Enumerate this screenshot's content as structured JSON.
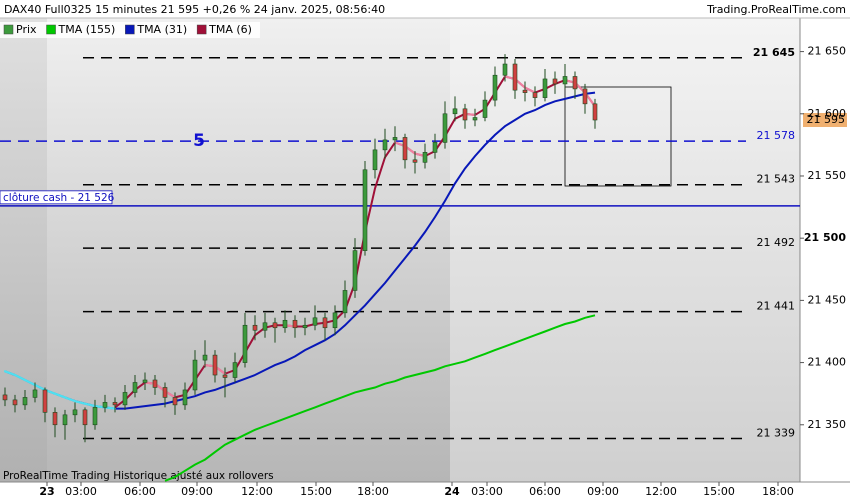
{
  "chart_data": {
    "type": "candlestick",
    "title": "DAX40 Full0325 15 minutes 21 595 +0,26 % 24 janv. 2025, 08:56:40",
    "source": "Trading.ProRealTime.com",
    "footer": "ProRealTime Trading  Historique ajusté aux rollovers",
    "annotation": "5",
    "price_name": "Prix",
    "price_color": "#3c9a3c",
    "ylim": [
      21304,
      21677
    ],
    "yticks": [
      {
        "value": 21350,
        "label": "21 350"
      },
      {
        "value": 21400,
        "label": "21 400"
      },
      {
        "value": 21450,
        "label": "21 450"
      },
      {
        "value": 21500,
        "label": "21 500"
      },
      {
        "value": 21550,
        "label": "21 550"
      },
      {
        "value": 21600,
        "label": "21 600"
      },
      {
        "value": 21650,
        "label": "21 650"
      }
    ],
    "x_labels": [
      "23",
      "03:00",
      "06:00",
      "09:00",
      "12:00",
      "15:00",
      "18:00",
      "24",
      "03:00",
      "06:00",
      "09:00",
      "12:00",
      "15:00",
      "18:00"
    ],
    "last_price": {
      "value": 21595,
      "label": "21 595"
    },
    "levels": [
      {
        "value": 21645,
        "label": "21 645",
        "color": "#000000"
      },
      {
        "value": 21578,
        "label": "21 578",
        "color": "#1010d0"
      },
      {
        "value": 21543,
        "label": "21 543",
        "color": "#000000"
      },
      {
        "value": 21492,
        "label": "21 492",
        "color": "#000000"
      },
      {
        "value": 21441,
        "label": "21 441",
        "color": "#000000"
      },
      {
        "value": 21339,
        "label": "21 339",
        "color": "#000000"
      }
    ],
    "cash_close": {
      "value": 21526,
      "label": "clôture cash -  21 526",
      "color": "#1010c0"
    },
    "ohlc": [
      [
        21374,
        21380,
        21365,
        21370
      ],
      [
        21370,
        21374,
        21360,
        21366
      ],
      [
        21366,
        21378,
        21362,
        21372
      ],
      [
        21372,
        21384,
        21368,
        21378
      ],
      [
        21378,
        21380,
        21352,
        21360
      ],
      [
        21360,
        21364,
        21340,
        21350
      ],
      [
        21350,
        21362,
        21338,
        21358
      ],
      [
        21358,
        21368,
        21352,
        21362
      ],
      [
        21362,
        21364,
        21336,
        21350
      ],
      [
        21350,
        21370,
        21346,
        21364
      ],
      [
        21364,
        21374,
        21360,
        21368
      ],
      [
        21368,
        21372,
        21360,
        21366
      ],
      [
        21366,
        21382,
        21362,
        21376
      ],
      [
        21376,
        21390,
        21372,
        21384
      ],
      [
        21384,
        21392,
        21378,
        21386
      ],
      [
        21386,
        21390,
        21374,
        21380
      ],
      [
        21380,
        21384,
        21364,
        21372
      ],
      [
        21372,
        21376,
        21358,
        21366
      ],
      [
        21366,
        21384,
        21362,
        21378
      ],
      [
        21378,
        21410,
        21374,
        21402
      ],
      [
        21402,
        21418,
        21396,
        21406
      ],
      [
        21406,
        21410,
        21384,
        21390
      ],
      [
        21390,
        21396,
        21372,
        21388
      ],
      [
        21388,
        21408,
        21384,
        21400
      ],
      [
        21400,
        21440,
        21396,
        21430
      ],
      [
        21430,
        21438,
        21418,
        21426
      ],
      [
        21426,
        21440,
        21420,
        21432
      ],
      [
        21432,
        21436,
        21416,
        21428
      ],
      [
        21428,
        21442,
        21424,
        21434
      ],
      [
        21434,
        21438,
        21420,
        21428
      ],
      [
        21428,
        21436,
        21422,
        21430
      ],
      [
        21430,
        21446,
        21426,
        21436
      ],
      [
        21436,
        21440,
        21418,
        21428
      ],
      [
        21428,
        21446,
        21422,
        21440
      ],
      [
        21440,
        21466,
        21436,
        21458
      ],
      [
        21458,
        21500,
        21452,
        21490
      ],
      [
        21490,
        21562,
        21486,
        21555
      ],
      [
        21555,
        21580,
        21548,
        21571
      ],
      [
        21571,
        21588,
        21564,
        21579
      ],
      [
        21579,
        21590,
        21570,
        21581
      ],
      [
        21581,
        21584,
        21556,
        21563
      ],
      [
        21563,
        21570,
        21552,
        21561
      ],
      [
        21561,
        21576,
        21556,
        21569
      ],
      [
        21569,
        21584,
        21564,
        21577
      ],
      [
        21577,
        21610,
        21572,
        21600
      ],
      [
        21600,
        21614,
        21594,
        21604
      ],
      [
        21604,
        21608,
        21588,
        21595
      ],
      [
        21595,
        21604,
        21590,
        21597
      ],
      [
        21597,
        21618,
        21594,
        21611
      ],
      [
        21611,
        21638,
        21606,
        21631
      ],
      [
        21631,
        21648,
        21626,
        21640
      ],
      [
        21640,
        21644,
        21612,
        21619
      ],
      [
        21619,
        21626,
        21610,
        21617
      ],
      [
        21617,
        21622,
        21606,
        21613
      ],
      [
        21613,
        21636,
        21610,
        21628
      ],
      [
        21628,
        21634,
        21616,
        21624
      ],
      [
        21624,
        21640,
        21620,
        21630
      ],
      [
        21630,
        21634,
        21612,
        21620
      ],
      [
        21620,
        21624,
        21600,
        21608
      ],
      [
        21608,
        21612,
        21588,
        21595
      ]
    ],
    "series": [
      {
        "name": "TMA (155)",
        "color": "#00c800",
        "color_down": "#00c800",
        "values": [
          null,
          null,
          null,
          null,
          null,
          null,
          null,
          null,
          null,
          null,
          null,
          null,
          null,
          null,
          null,
          null,
          21305,
          21308,
          21313,
          21318,
          21322,
          21328,
          21334,
          21338,
          21342,
          21346,
          21349,
          21352,
          21355,
          21358,
          21361,
          21364,
          21367,
          21370,
          21373,
          21376,
          21378,
          21380,
          21383,
          21385,
          21388,
          21390,
          21392,
          21394,
          21397,
          21399,
          21401,
          21404,
          21407,
          21410,
          21413,
          21416,
          21419,
          21422,
          21425,
          21428,
          21431,
          21433,
          21436,
          21438
        ]
      },
      {
        "name": "TMA (31)",
        "color": "#0818b8",
        "color_down": "#50e0f0",
        "values": [
          21393,
          21390,
          21386,
          21382,
          21378,
          21375,
          21372,
          21369,
          21367,
          21365,
          21364,
          21363,
          21363,
          21364,
          21365,
          21366,
          21367,
          21369,
          21371,
          21373,
          21376,
          21378,
          21381,
          21384,
          21387,
          21390,
          21394,
          21398,
          21401,
          21405,
          21410,
          21414,
          21418,
          21423,
          21430,
          21438,
          21446,
          21455,
          21464,
          21474,
          21484,
          21494,
          21505,
          21517,
          21530,
          21544,
          21556,
          21566,
          21575,
          21583,
          21590,
          21595,
          21600,
          21603,
          21607,
          21610,
          21612,
          21614,
          21616,
          21617
        ]
      },
      {
        "name": "TMA (6)",
        "color": "#a01038",
        "color_down": "#f080a0",
        "values": [
          null,
          null,
          null,
          null,
          null,
          null,
          null,
          null,
          null,
          null,
          null,
          21364,
          21370,
          21378,
          21384,
          21383,
          21377,
          21372,
          21374,
          21386,
          21398,
          21397,
          21391,
          21394,
          21408,
          21422,
          21428,
          21430,
          21430,
          21429,
          21429,
          21431,
          21432,
          21434,
          21442,
          21464,
          21505,
          21540,
          21565,
          21577,
          21574,
          21568,
          21566,
          21570,
          21582,
          21596,
          21600,
          21599,
          21604,
          21617,
          21630,
          21628,
          21621,
          21617,
          21620,
          21624,
          21627,
          21625,
          21617,
          21606
        ]
      }
    ]
  }
}
